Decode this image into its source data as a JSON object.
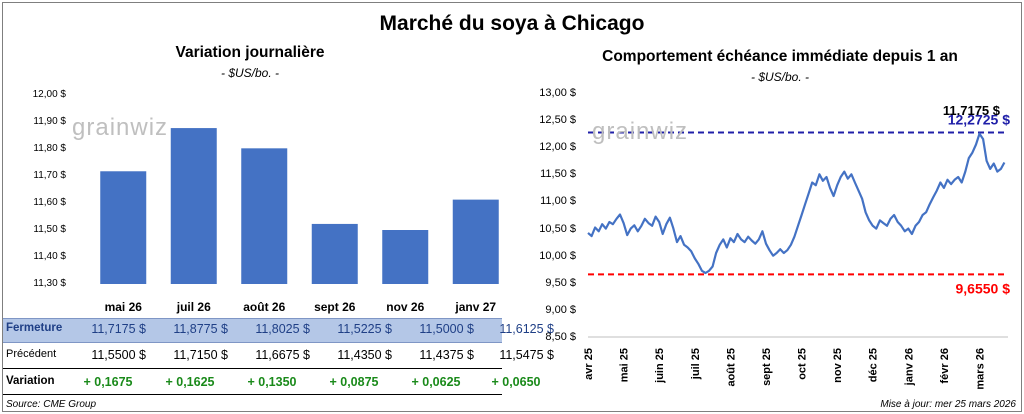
{
  "main_title": "Marché du soya à Chicago",
  "left_panel": {
    "title": "Variation journalière",
    "unit": "- $US/bo. -",
    "watermark": "grainwiz"
  },
  "right_panel": {
    "title": "Comportement échéance immédiate depuis 1 an",
    "unit": "- $US/bo. -",
    "watermark": "grainwiz"
  },
  "table": {
    "fermeture_label": "Fermeture",
    "precedent_label": "Précédent",
    "variation_label": "Variation",
    "fermeture": [
      "11,7175  $",
      "11,8775  $",
      "11,8025  $",
      "11,5225  $",
      "11,5000  $",
      "11,6125  $"
    ],
    "precedent": [
      "11,5500  $",
      "11,7150  $",
      "11,6675  $",
      "11,4350  $",
      "11,4375  $",
      "11,5475  $"
    ],
    "variation": [
      "+ 0,1675",
      "+ 0,1625",
      "+ 0,1350",
      "+ 0,0875",
      "+ 0,0625",
      "+ 0,0650"
    ]
  },
  "footer": {
    "source": "Source: CME Group",
    "updated": "Mise à jour: mer 25 mars 2026"
  },
  "colors": {
    "bar": "#4472c4",
    "line": "#4472c4",
    "high": "#1f1fa8",
    "low": "#ff0000",
    "fermeture_bg": "#b4c7e7",
    "variation": "#1a8a1a"
  },
  "chart_data": [
    {
      "type": "bar",
      "title": "Variation journalière",
      "ylabel": "$US/bo.",
      "categories": [
        "mai 26",
        "juil 26",
        "août 26",
        "sept 26",
        "nov 26",
        "janv 27"
      ],
      "values": [
        11.7175,
        11.8775,
        11.8025,
        11.5225,
        11.5,
        11.6125
      ],
      "ylim": [
        11.3,
        12.0
      ],
      "yticks": [
        "12,00 $",
        "11,90 $",
        "11,80 $",
        "11,70 $",
        "11,60 $",
        "11,50 $",
        "11,40 $",
        "11,30 $"
      ],
      "grid": false
    },
    {
      "type": "line",
      "title": "Comportement échéance immédiate depuis 1 an",
      "ylabel": "$US/bo.",
      "ylim": [
        8.5,
        13.0
      ],
      "yticks": [
        "13,00 $",
        "12,50 $",
        "12,00 $",
        "11,50 $",
        "11,00 $",
        "10,50 $",
        "10,00 $",
        "9,50 $",
        "9,00 $",
        "8,50 $"
      ],
      "xticks": [
        "avr 25",
        "mai 25",
        "juin 25",
        "juil 25",
        "août 25",
        "sept 25",
        "oct 25",
        "nov 25",
        "déc 25",
        "janv 26",
        "févr 26",
        "mars 26"
      ],
      "months": [
        0,
        1,
        2,
        3,
        4,
        5,
        6,
        7,
        8,
        9,
        10,
        11,
        11.8
      ],
      "series": [
        {
          "x": [
            0.0,
            0.1,
            0.2,
            0.3,
            0.4,
            0.5,
            0.6,
            0.7,
            0.8,
            0.9,
            1.0,
            1.1,
            1.2,
            1.3,
            1.4,
            1.5,
            1.6,
            1.7,
            1.8,
            1.9,
            2.0,
            2.1,
            2.2,
            2.3,
            2.4,
            2.5,
            2.6,
            2.7,
            2.8,
            2.9,
            3.0,
            3.1,
            3.2,
            3.3,
            3.4,
            3.5,
            3.6,
            3.7,
            3.8,
            3.9,
            4.0,
            4.1,
            4.2,
            4.3,
            4.4,
            4.5,
            4.6,
            4.7,
            4.8,
            4.9,
            5.0,
            5.1,
            5.2,
            5.3,
            5.4,
            5.5,
            5.6,
            5.7,
            5.8,
            5.9,
            6.0,
            6.1,
            6.2,
            6.3,
            6.4,
            6.5,
            6.6,
            6.7,
            6.8,
            6.9,
            7.0,
            7.1,
            7.2,
            7.3,
            7.4,
            7.5,
            7.6,
            7.7,
            7.8,
            7.9,
            8.0,
            8.1,
            8.2,
            8.3,
            8.4,
            8.5,
            8.6,
            8.7,
            8.8,
            8.9,
            9.0,
            9.1,
            9.2,
            9.3,
            9.4,
            9.5,
            9.6,
            9.7,
            9.8,
            9.9,
            10.0,
            10.1,
            10.2,
            10.3,
            10.4,
            10.5,
            10.6,
            10.7,
            10.8,
            10.9,
            11.0,
            11.1,
            11.2,
            11.3,
            11.4,
            11.5,
            11.6,
            11.7
          ],
          "y": [
            10.42,
            10.36,
            10.52,
            10.45,
            10.58,
            10.5,
            10.62,
            10.58,
            10.68,
            10.76,
            10.6,
            10.38,
            10.5,
            10.56,
            10.45,
            10.55,
            10.68,
            10.6,
            10.55,
            10.72,
            10.62,
            10.4,
            10.58,
            10.7,
            10.5,
            10.25,
            10.36,
            10.2,
            10.15,
            10.08,
            9.95,
            9.85,
            9.72,
            9.68,
            9.72,
            9.8,
            10.05,
            10.2,
            10.3,
            10.15,
            10.32,
            10.25,
            10.4,
            10.3,
            10.25,
            10.35,
            10.28,
            10.22,
            10.3,
            10.45,
            10.22,
            10.1,
            10.0,
            10.05,
            10.12,
            10.05,
            10.1,
            10.2,
            10.35,
            10.55,
            10.75,
            10.95,
            11.15,
            11.35,
            11.3,
            11.5,
            11.38,
            11.45,
            11.25,
            11.1,
            11.3,
            11.45,
            11.55,
            11.42,
            11.5,
            11.35,
            11.2,
            11.05,
            10.8,
            10.65,
            10.55,
            10.5,
            10.65,
            10.6,
            10.55,
            10.68,
            10.75,
            10.62,
            10.55,
            10.45,
            10.5,
            10.4,
            10.55,
            10.62,
            10.75,
            10.8,
            10.95,
            11.08,
            11.2,
            11.35,
            11.25,
            11.4,
            11.32,
            11.4,
            11.45,
            11.35,
            11.55,
            11.8,
            11.9,
            12.05,
            12.25,
            12.15,
            11.75,
            11.6,
            11.7,
            11.55,
            11.6,
            11.7175
          ]
        }
      ],
      "high": {
        "value": 12.2725,
        "label": "12,2725 $"
      },
      "low": {
        "value": 9.655,
        "label": "9,6550 $"
      },
      "last": {
        "value": 11.7175,
        "label": "11,7175 $"
      },
      "grid": false
    }
  ]
}
